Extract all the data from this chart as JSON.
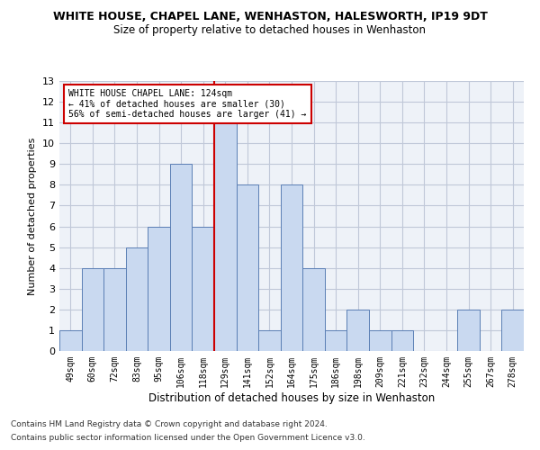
{
  "title": "WHITE HOUSE, CHAPEL LANE, WENHASTON, HALESWORTH, IP19 9DT",
  "subtitle": "Size of property relative to detached houses in Wenhaston",
  "xlabel": "Distribution of detached houses by size in Wenhaston",
  "ylabel": "Number of detached properties",
  "bar_labels": [
    "49sqm",
    "60sqm",
    "72sqm",
    "83sqm",
    "95sqm",
    "106sqm",
    "118sqm",
    "129sqm",
    "141sqm",
    "152sqm",
    "164sqm",
    "175sqm",
    "186sqm",
    "198sqm",
    "209sqm",
    "221sqm",
    "232sqm",
    "244sqm",
    "255sqm",
    "267sqm",
    "278sqm"
  ],
  "bar_values": [
    1,
    4,
    4,
    5,
    6,
    9,
    6,
    11,
    8,
    1,
    8,
    4,
    1,
    2,
    1,
    1,
    0,
    0,
    2,
    0,
    2
  ],
  "bar_color": "#c9d9f0",
  "bar_edge_color": "#5b7fb5",
  "vline_position": 6.5,
  "vline_color": "#cc0000",
  "legend_text_line1": "WHITE HOUSE CHAPEL LANE: 124sqm",
  "legend_text_line2": "← 41% of detached houses are smaller (30)",
  "legend_text_line3": "56% of semi-detached houses are larger (41) →",
  "legend_box_color": "white",
  "legend_box_edge": "#cc0000",
  "ylim": [
    0,
    13
  ],
  "yticks": [
    0,
    1,
    2,
    3,
    4,
    5,
    6,
    7,
    8,
    9,
    10,
    11,
    12,
    13
  ],
  "footnote1": "Contains HM Land Registry data © Crown copyright and database right 2024.",
  "footnote2": "Contains public sector information licensed under the Open Government Licence v3.0.",
  "grid_color": "#c0c8d8",
  "bg_color": "#eef2f8"
}
